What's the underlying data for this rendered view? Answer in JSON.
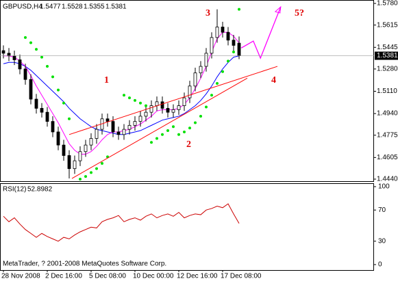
{
  "chart_data": {
    "type": "candlestick",
    "symbol": "GBPUSD,H4",
    "header_values": [
      1.5477,
      1.5528,
      1.5355,
      1.5381
    ],
    "categories": [
      "28 Nov 2008",
      null,
      null,
      null,
      null,
      null,
      null,
      null,
      "2 Dec 16:00",
      null,
      null,
      null,
      null,
      null,
      null,
      null,
      "5 Dec 08:00",
      null,
      null,
      null,
      null,
      null,
      null,
      null,
      "10 Dec 00:00",
      null,
      null,
      null,
      null,
      null,
      null,
      null,
      "12 Dec 16:00",
      null,
      null,
      null,
      null,
      null,
      null,
      null,
      "17 Dec 08:00",
      null,
      null,
      null
    ],
    "open": [
      1.542,
      1.54,
      1.538,
      1.535,
      1.528,
      1.52,
      1.505,
      1.498,
      1.495,
      1.488,
      1.48,
      1.47,
      1.462,
      1.452,
      1.458,
      1.465,
      1.47,
      1.475,
      1.482,
      1.49,
      1.488,
      1.48,
      1.478,
      1.482,
      1.485,
      1.488,
      1.492,
      1.495,
      1.5,
      1.503,
      1.498,
      1.495,
      1.497,
      1.5,
      1.506,
      1.515,
      1.525,
      1.53,
      1.54,
      1.552,
      1.56,
      1.556,
      1.55,
      1.5477
    ],
    "high": [
      1.546,
      1.544,
      1.542,
      1.539,
      1.532,
      1.524,
      1.509,
      1.502,
      1.499,
      1.492,
      1.484,
      1.474,
      1.466,
      1.462,
      1.469,
      1.474,
      1.479,
      1.486,
      1.494,
      1.494,
      1.492,
      1.484,
      1.486,
      1.489,
      1.492,
      1.496,
      1.499,
      1.504,
      1.507,
      1.507,
      1.502,
      1.501,
      1.504,
      1.51,
      1.519,
      1.529,
      1.534,
      1.544,
      1.556,
      1.5735,
      1.564,
      1.56,
      1.554,
      1.5528
    ],
    "low": [
      1.536,
      1.534,
      1.531,
      1.524,
      1.516,
      1.501,
      1.494,
      1.491,
      1.484,
      1.476,
      1.466,
      1.458,
      1.4445,
      1.448,
      1.454,
      1.461,
      1.466,
      1.471,
      1.478,
      1.484,
      1.476,
      1.474,
      1.474,
      1.478,
      1.481,
      1.484,
      1.488,
      1.491,
      1.496,
      1.494,
      1.491,
      1.491,
      1.493,
      1.496,
      1.502,
      1.511,
      1.521,
      1.526,
      1.536,
      1.548,
      1.552,
      1.546,
      1.542,
      1.5355
    ],
    "close": [
      1.54,
      1.538,
      1.535,
      1.528,
      1.52,
      1.505,
      1.498,
      1.495,
      1.488,
      1.48,
      1.47,
      1.462,
      1.452,
      1.458,
      1.465,
      1.47,
      1.475,
      1.482,
      1.49,
      1.488,
      1.48,
      1.478,
      1.482,
      1.485,
      1.488,
      1.492,
      1.495,
      1.5,
      1.503,
      1.498,
      1.495,
      1.497,
      1.5,
      1.506,
      1.515,
      1.525,
      1.53,
      1.54,
      1.552,
      1.56,
      1.556,
      1.55,
      1.546,
      1.5381
    ],
    "ylim": [
      1.444,
      1.578
    ],
    "yticks": [
      {
        "value": 1.578,
        "label": "1.5780"
      },
      1.5615,
      1.5445,
      {
        "value": 1.528,
        "label": "1.5280"
      },
      {
        "value": 1.511,
        "label": "1.5110"
      },
      {
        "value": 1.494,
        "label": "1.4940"
      },
      1.4775,
      1.4605,
      {
        "value": 1.444,
        "label": "1.4440"
      }
    ],
    "series": [
      {
        "color": "#0000ff",
        "values": [
          1.532,
          1.533,
          1.533,
          1.532,
          1.53,
          1.527,
          1.523,
          1.519,
          1.515,
          1.511,
          1.507,
          1.503,
          1.498,
          1.494,
          1.49,
          1.487,
          1.484,
          1.482,
          1.481,
          1.48,
          1.479,
          1.478,
          1.478,
          1.479,
          1.48,
          1.481,
          1.483,
          1.485,
          1.487,
          1.489,
          1.49,
          1.491,
          1.492,
          1.494,
          1.497,
          1.5,
          1.504,
          1.509,
          1.515,
          1.522,
          1.528,
          1.533,
          1.537,
          1.538
        ]
      },
      {
        "color": "#ff00ff",
        "values": [
          1.538,
          1.538,
          1.537,
          1.534,
          1.53,
          1.523,
          1.515,
          1.508,
          1.501,
          1.494,
          1.487,
          1.479,
          1.471,
          1.466,
          1.463,
          1.463,
          1.465,
          1.469,
          1.474,
          1.478,
          1.48,
          1.48,
          1.481,
          1.482,
          1.484,
          1.486,
          1.489,
          1.492,
          1.496,
          1.497,
          1.497,
          1.497,
          1.498,
          1.501,
          1.506,
          1.513,
          1.521,
          1.53,
          1.541,
          1.551,
          1.556,
          1.556,
          1.553,
          1.548
        ]
      }
    ],
    "sar": {
      "color": "#00e000",
      "values": [
        null,
        null,
        null,
        null,
        1.552,
        1.548,
        1.543,
        1.537,
        1.53,
        1.522,
        1.512,
        1.502,
        1.49,
        null,
        1.444,
        1.446,
        1.449,
        1.452,
        1.456,
        1.461,
        null,
        null,
        1.508,
        1.506,
        1.504,
        1.502,
        1.5,
        1.472,
        1.475,
        1.478,
        1.481,
        1.484,
        1.478,
        1.48,
        1.483,
        1.487,
        1.492,
        1.499,
        1.508,
        1.517,
        1.526,
        1.534,
        1.541,
        1.5735
      ]
    },
    "trendlines": [
      {
        "color": "#ff0000",
        "x": [
          12.5,
          44.5
        ],
        "y": [
          1.4445,
          1.521
        ]
      },
      {
        "color": "#ff0000",
        "x": [
          12,
          50
        ],
        "y": [
          1.478,
          1.53
        ]
      }
    ],
    "projection": {
      "color": "#ff00ff",
      "x": [
        43.4,
        45.6,
        46.9,
        50.6
      ],
      "y": [
        1.544,
        1.5493,
        1.5363,
        1.5754
      ]
    },
    "annotations": [
      "1",
      "2",
      "3",
      "4",
      "5?"
    ],
    "indicator": {
      "label": "RSI(12)",
      "value": 52.8982,
      "color": "#cc0000",
      "values": [
        62,
        55,
        60,
        52,
        45,
        40,
        35,
        40,
        36,
        33,
        30,
        35,
        33,
        38,
        42,
        45,
        48,
        47,
        55,
        58,
        60,
        63,
        55,
        58,
        60,
        57,
        62,
        65,
        60,
        63,
        65,
        62,
        67,
        60,
        63,
        65,
        64,
        70,
        72,
        75,
        73,
        78,
        65,
        52.8982
      ],
      "ylim": [
        0,
        100
      ],
      "yticks": [
        100,
        70,
        30,
        0
      ]
    },
    "footer": "MetaTrader, ? 2001-2008 MetaQuotes Software Corp."
  }
}
